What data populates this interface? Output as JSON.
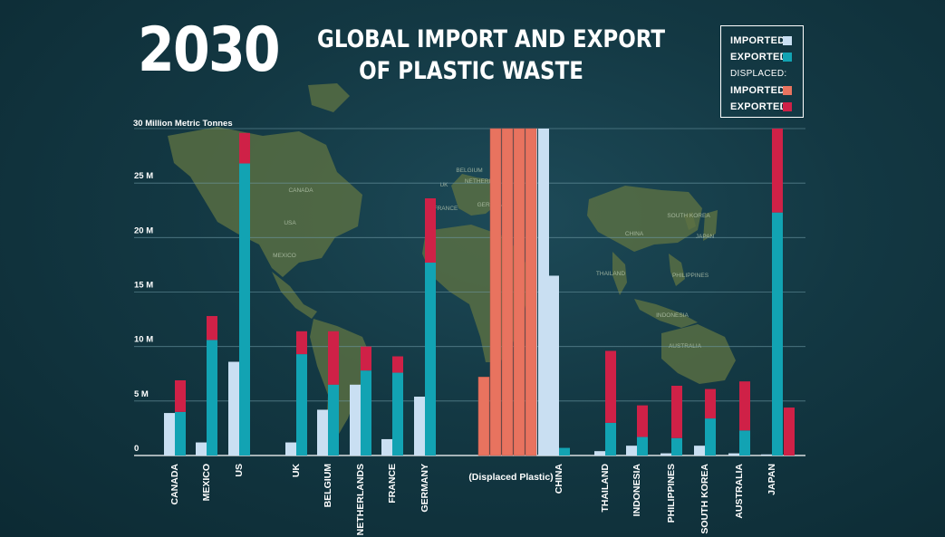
{
  "header": {
    "year": "2030",
    "title_line1": "GLOBAL IMPORT AND EXPORT",
    "title_line2": "OF PLASTIC WASTE",
    "units": "30 Million Metric Tonnes"
  },
  "legend": {
    "imported": "IMPORTED",
    "exported": "EXPORTED",
    "displaced_heading": "DISPLACED:",
    "displaced_imported": "IMPORTED",
    "displaced_exported": "EXPORTED"
  },
  "map_labels": [
    "CANADA",
    "USA",
    "MEXICO",
    "BELGIUM",
    "NETHERL",
    "UK",
    "FRANCE",
    "GERMANY",
    "CHINA",
    "SOUTH KOREA",
    "JAPAN",
    "THAILAND",
    "PHILIPPINES",
    "INDONESIA",
    "AUSTRALIA"
  ],
  "colors": {
    "imported": "#c9dff2",
    "exported": "#12a3b3",
    "displaced_imported": "#e8735f",
    "displaced_exported": "#cf2147",
    "background": "#133843",
    "gridline": "#6f9aa6",
    "land": "#5e7242"
  },
  "chart_data": {
    "type": "bar",
    "stacked_export": true,
    "y_unit": "Million Metric Tonnes",
    "ylim": [
      0,
      30
    ],
    "yticks": [
      "0",
      "5 M",
      "10 M",
      "15 M",
      "20 M",
      "25 M",
      ""
    ],
    "grid": true,
    "legend_position": "top-right",
    "countries": [
      {
        "name": "CANADA",
        "imported": 3.9,
        "exported": 4.0,
        "displaced_exported": 2.9
      },
      {
        "name": "MEXICO",
        "imported": 1.2,
        "exported": 10.6,
        "displaced_exported": 2.2
      },
      {
        "name": "US",
        "imported": 8.6,
        "exported": 26.8,
        "displaced_exported": 2.8
      },
      {
        "name": "UK",
        "imported": 1.2,
        "exported": 9.3,
        "displaced_exported": 2.1
      },
      {
        "name": "BELGIUM",
        "imported": 4.2,
        "exported": 6.5,
        "displaced_exported": 4.9
      },
      {
        "name": "NETHERLANDS",
        "imported": 6.5,
        "exported": 7.8,
        "displaced_exported": 2.2
      },
      {
        "name": "FRANCE",
        "imported": 1.5,
        "exported": 7.6,
        "displaced_exported": 1.5
      },
      {
        "name": "GERMANY",
        "imported": 5.4,
        "exported": 17.7,
        "displaced_exported": 5.9
      },
      {
        "name": "CHINA",
        "imported": 16.5,
        "imported_total": 30.0,
        "exported": 0.7,
        "displaced_exported": 0
      },
      {
        "name": "THAILAND",
        "imported": 0.4,
        "exported": 3.0,
        "displaced_exported": 6.6
      },
      {
        "name": "INDONESIA",
        "imported": 0.9,
        "exported": 1.7,
        "displaced_exported": 2.9
      },
      {
        "name": "PHILIPPINES",
        "imported": 0.2,
        "exported": 1.6,
        "displaced_exported": 4.8
      },
      {
        "name": "SOUTH KOREA",
        "imported": 0.9,
        "exported": 3.4,
        "displaced_exported": 2.7
      },
      {
        "name": "AUSTRALIA",
        "imported": 0.2,
        "exported": 2.3,
        "displaced_exported": 4.5
      },
      {
        "name": "JAPAN",
        "imported": 0.1,
        "exported": 22.3,
        "displaced_exported": 7.7,
        "displaced_imported_extra": 4.4
      }
    ],
    "displaced_plastic": {
      "label": "(Displaced Plastic)",
      "values": [
        7.2,
        30,
        30,
        30,
        30
      ]
    }
  }
}
